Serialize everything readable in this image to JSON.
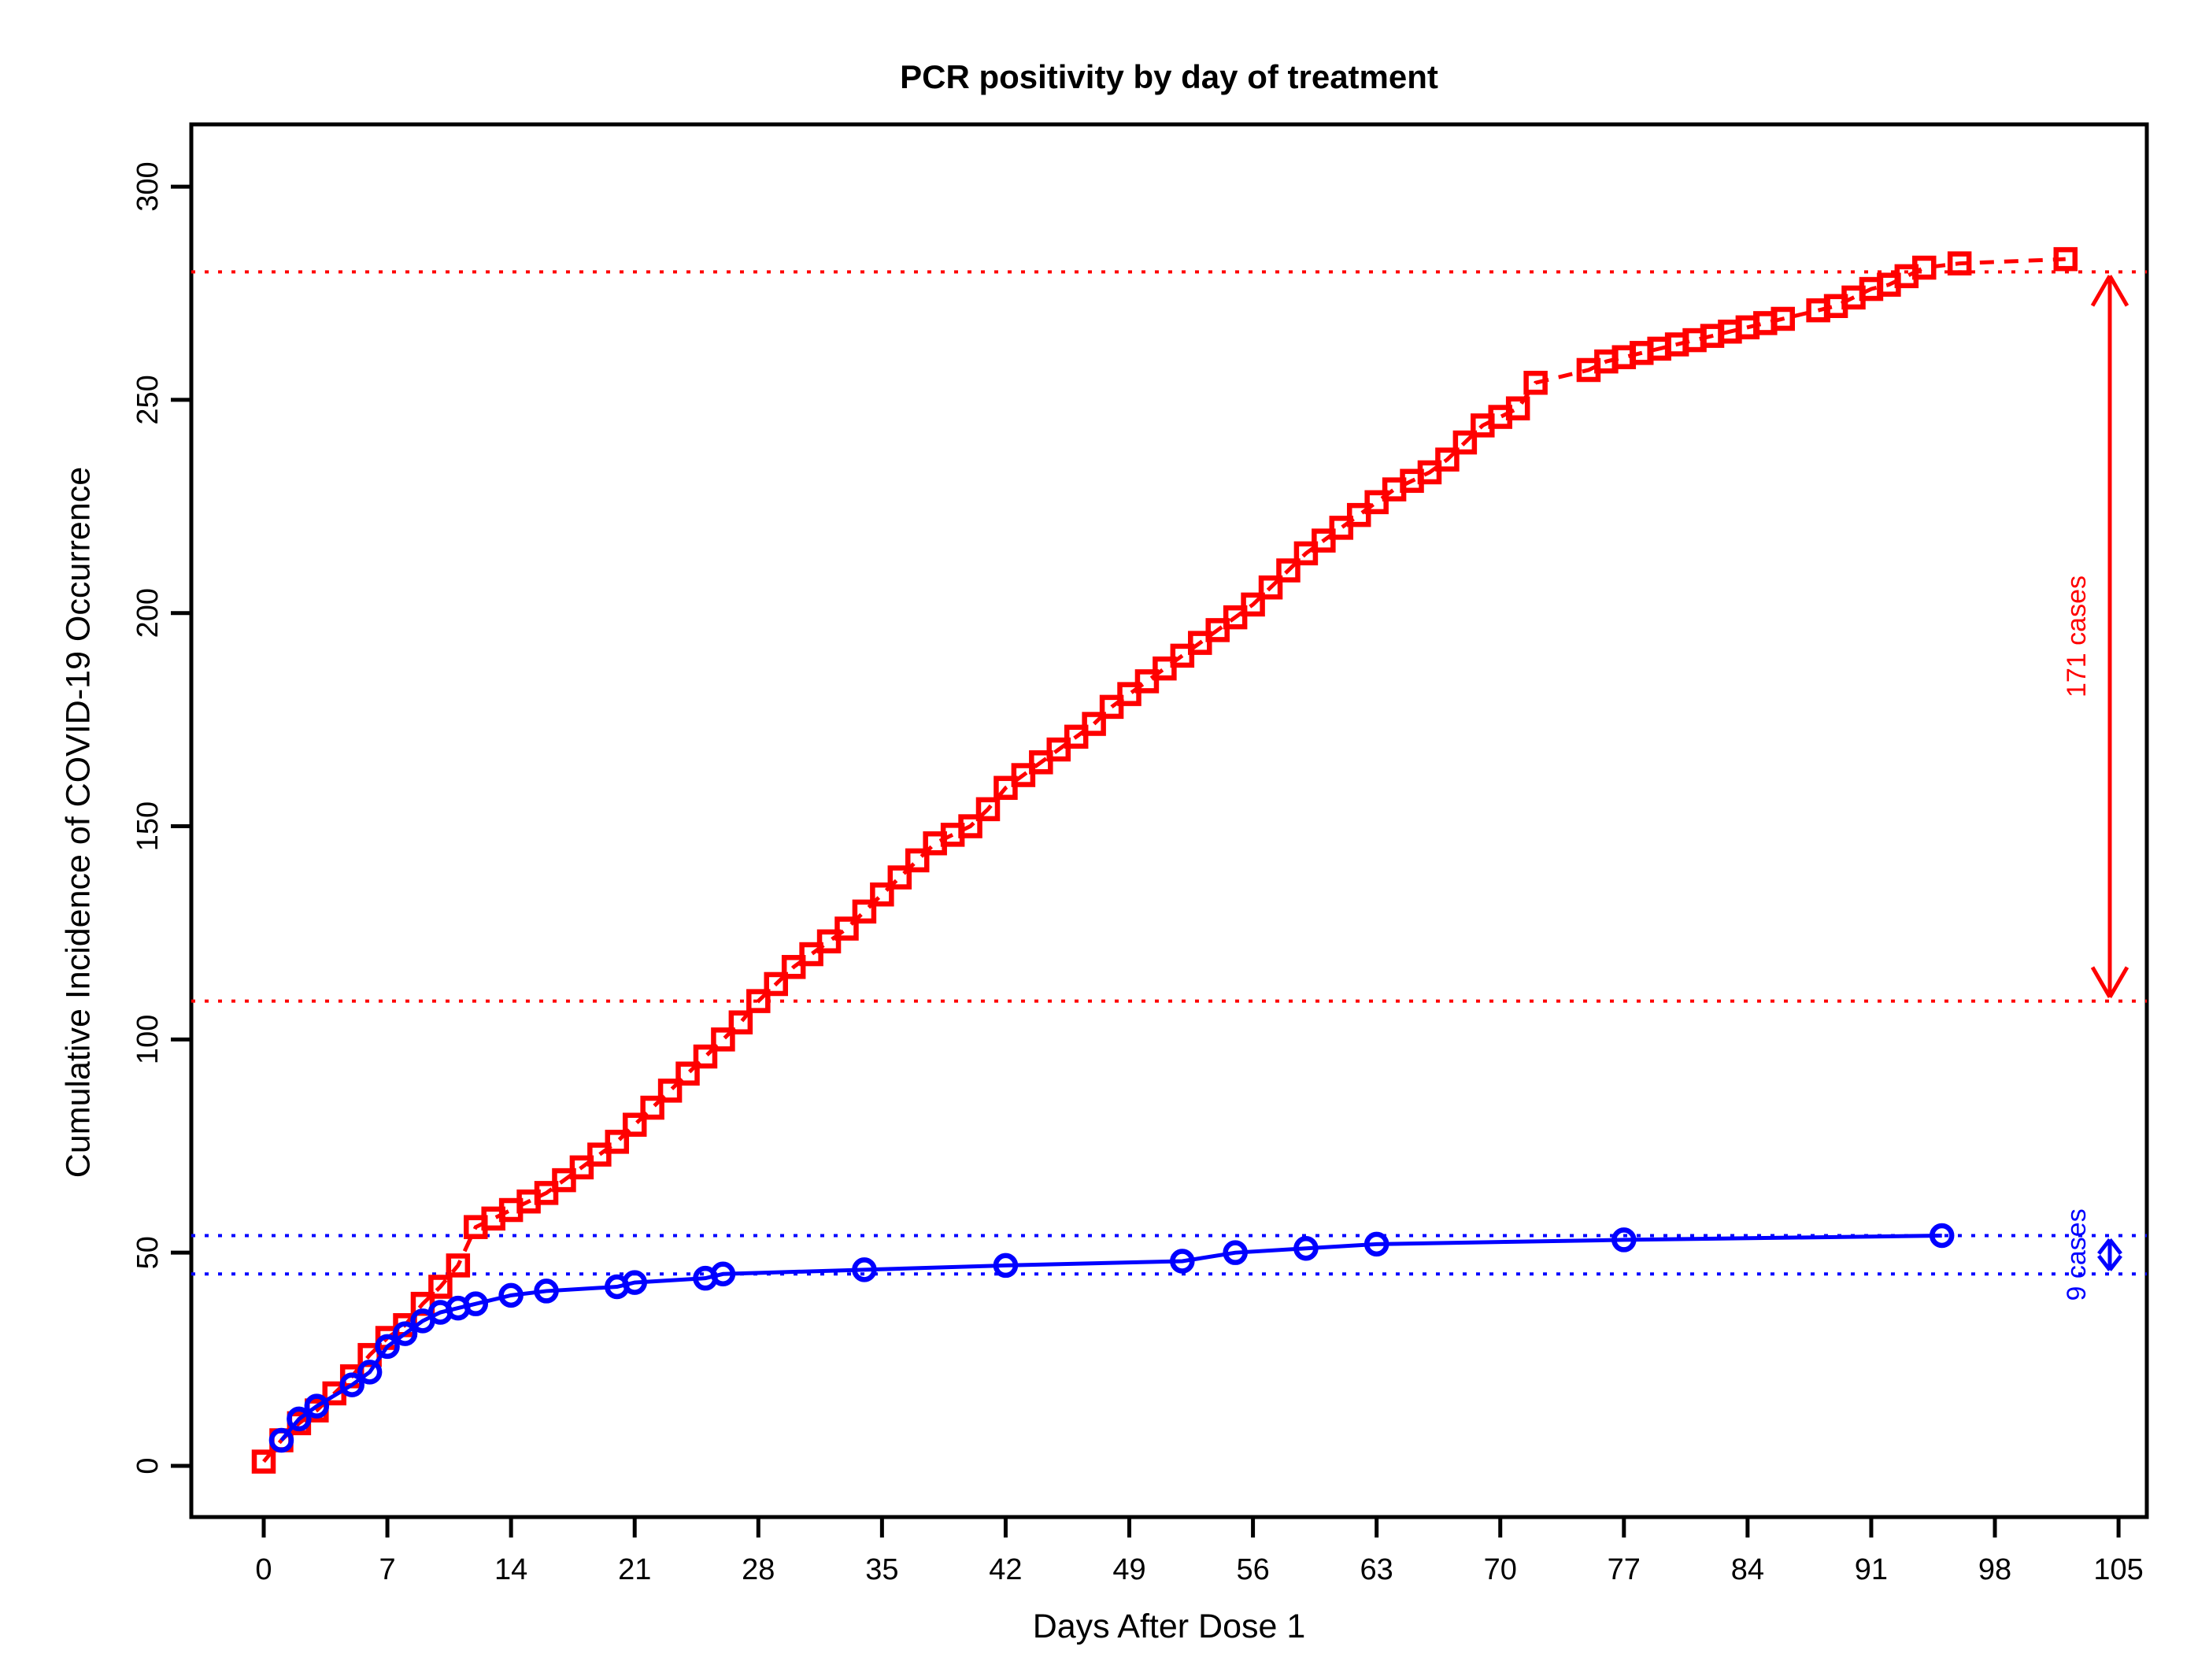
{
  "title": "PCR positivity by day of treatment",
  "x_axis": {
    "label": "Days After Dose 1",
    "ticks": [
      0,
      7,
      14,
      21,
      28,
      35,
      42,
      49,
      56,
      63,
      70,
      77,
      84,
      91,
      98,
      105
    ]
  },
  "y_axis": {
    "label": "Cumulative Incidence of COVID-19 Occurrence",
    "ticks": [
      0,
      50,
      100,
      150,
      200,
      250,
      300
    ]
  },
  "colors": {
    "red": "#ff0000",
    "blue": "#0000ff",
    "axis": "#000000",
    "background": "#ffffff"
  },
  "annotations": {
    "red_span_label": "171 cases",
    "blue_span_label": "9 cases"
  },
  "chart_data": {
    "type": "line",
    "title": "PCR positivity by day of treatment",
    "xlabel": "Days After Dose 1",
    "ylabel": "Cumulative Incidence of COVID-19 Occurrence",
    "xlim": [
      -4.1,
      106.6
    ],
    "ylim": [
      -12,
      314.6
    ],
    "x_ticks": [
      0,
      7,
      14,
      21,
      28,
      35,
      42,
      49,
      56,
      63,
      70,
      77,
      84,
      91,
      98,
      105
    ],
    "y_ticks": [
      0,
      50,
      100,
      150,
      200,
      250,
      300
    ],
    "grid": false,
    "legend": "none",
    "series": [
      {
        "name": "pcr-positive-red",
        "color": "#ff0000",
        "marker": "square",
        "line": "dashed",
        "points": [
          [
            0,
            1
          ],
          [
            1,
            6
          ],
          [
            2,
            10
          ],
          [
            3,
            13
          ],
          [
            4,
            17
          ],
          [
            5,
            21
          ],
          [
            6,
            26
          ],
          [
            7,
            30
          ],
          [
            8,
            33
          ],
          [
            9,
            38
          ],
          [
            10,
            42
          ],
          [
            11,
            47
          ],
          [
            12,
            56
          ],
          [
            13,
            58
          ],
          [
            14,
            60
          ],
          [
            15,
            62
          ],
          [
            16,
            64
          ],
          [
            17,
            67
          ],
          [
            18,
            70
          ],
          [
            19,
            73
          ],
          [
            20,
            76
          ],
          [
            21,
            80
          ],
          [
            22,
            84
          ],
          [
            23,
            88
          ],
          [
            24,
            92
          ],
          [
            25,
            96
          ],
          [
            26,
            100
          ],
          [
            27,
            104
          ],
          [
            28,
            109
          ],
          [
            29,
            113
          ],
          [
            30,
            117
          ],
          [
            31,
            120
          ],
          [
            32,
            123
          ],
          [
            33,
            126
          ],
          [
            34,
            130
          ],
          [
            35,
            134
          ],
          [
            36,
            138
          ],
          [
            37,
            142
          ],
          [
            38,
            146
          ],
          [
            39,
            148
          ],
          [
            40,
            150
          ],
          [
            41,
            154
          ],
          [
            42,
            159
          ],
          [
            43,
            162
          ],
          [
            44,
            165
          ],
          [
            45,
            168
          ],
          [
            46,
            171
          ],
          [
            47,
            174
          ],
          [
            48,
            178
          ],
          [
            49,
            181
          ],
          [
            50,
            184
          ],
          [
            51,
            187
          ],
          [
            52,
            190
          ],
          [
            53,
            193
          ],
          [
            54,
            196
          ],
          [
            55,
            199
          ],
          [
            56,
            202
          ],
          [
            57,
            206
          ],
          [
            58,
            210
          ],
          [
            59,
            214
          ],
          [
            60,
            217
          ],
          [
            61,
            220
          ],
          [
            62,
            223
          ],
          [
            63,
            226
          ],
          [
            64,
            229
          ],
          [
            65,
            231
          ],
          [
            66,
            233
          ],
          [
            67,
            236
          ],
          [
            68,
            240
          ],
          [
            69,
            244
          ],
          [
            70,
            246
          ],
          [
            71,
            248
          ],
          [
            72,
            254
          ],
          [
            75,
            257
          ],
          [
            76,
            259
          ],
          [
            77,
            260
          ],
          [
            78,
            261
          ],
          [
            79,
            262
          ],
          [
            80,
            263
          ],
          [
            81,
            264
          ],
          [
            82,
            265
          ],
          [
            83,
            266
          ],
          [
            84,
            267
          ],
          [
            85,
            268
          ],
          [
            86,
            269
          ],
          [
            88,
            271
          ],
          [
            89,
            272
          ],
          [
            90,
            274
          ],
          [
            91,
            276
          ],
          [
            92,
            277
          ],
          [
            93,
            279
          ],
          [
            94,
            281
          ],
          [
            96,
            282
          ],
          [
            102,
            283
          ]
        ]
      },
      {
        "name": "pcr-positive-blue",
        "color": "#0000ff",
        "marker": "circle",
        "line": "solid",
        "points": [
          [
            1,
            6
          ],
          [
            2,
            11
          ],
          [
            3,
            14
          ],
          [
            5,
            19
          ],
          [
            6,
            22
          ],
          [
            7,
            28
          ],
          [
            8,
            31
          ],
          [
            9,
            34
          ],
          [
            10,
            36
          ],
          [
            11,
            37
          ],
          [
            12,
            38
          ],
          [
            14,
            40
          ],
          [
            16,
            41
          ],
          [
            20,
            42
          ],
          [
            21,
            43
          ],
          [
            25,
            44
          ],
          [
            26,
            45
          ],
          [
            34,
            46
          ],
          [
            42,
            47
          ],
          [
            52,
            48
          ],
          [
            55,
            50
          ],
          [
            59,
            51
          ],
          [
            63,
            52
          ],
          [
            77,
            53
          ],
          [
            95,
            54
          ]
        ]
      }
    ],
    "reference_lines": [
      {
        "y": 280,
        "color": "#ff0000",
        "style": "dotted"
      },
      {
        "y": 109,
        "color": "#ff0000",
        "style": "dotted"
      },
      {
        "y": 54,
        "color": "#0000ff",
        "style": "dotted"
      },
      {
        "y": 45,
        "color": "#0000ff",
        "style": "dotted"
      }
    ],
    "span_annotations": [
      {
        "from": 109,
        "to": 280,
        "label": "171 cases",
        "color": "#ff0000"
      },
      {
        "from": 45,
        "to": 54,
        "label": "9 cases",
        "color": "#0000ff"
      }
    ]
  }
}
